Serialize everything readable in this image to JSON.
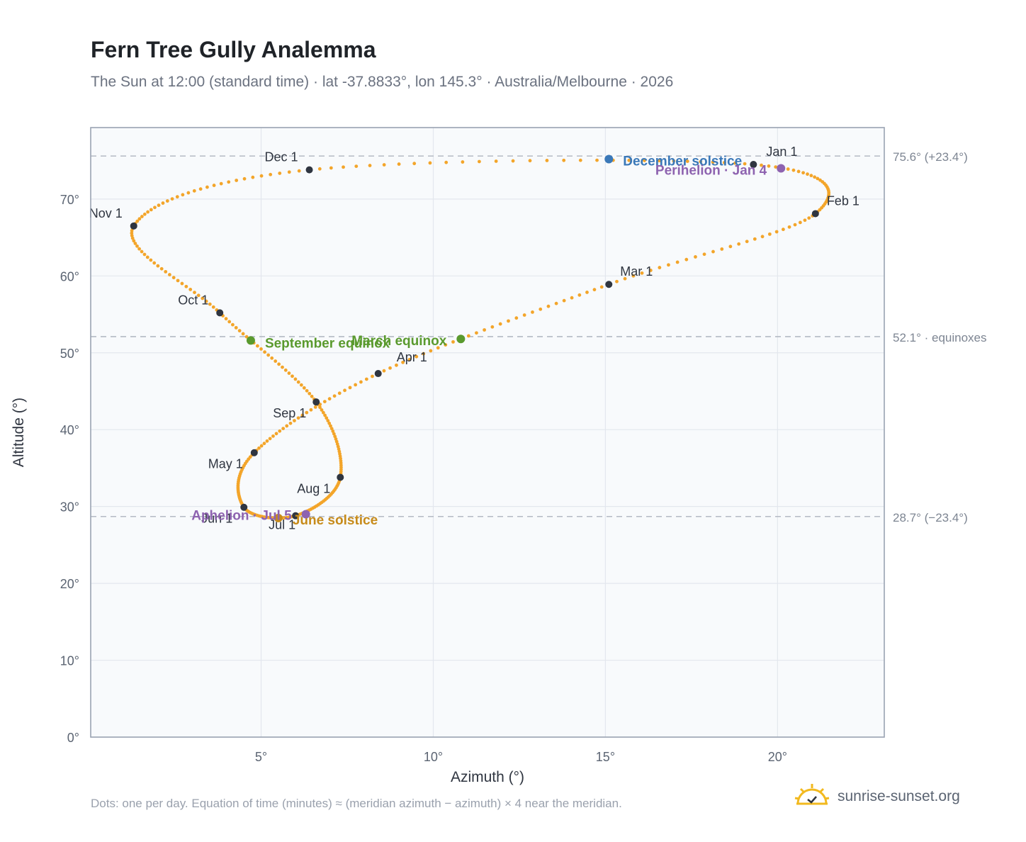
{
  "title": "Fern Tree Gully Analemma",
  "subtitle": "The Sun at 12:00 (standard time) · lat -37.8833°, lon 145.3° · Australia/Melbourne · 2026",
  "footnote": "Dots: one per day. Equation of time (minutes) ≈ (meridian azimuth − azimuth) × 4 near the meridian.",
  "brand": {
    "name": "sunrise-sunset.org",
    "icon": "sun-logo-icon"
  },
  "colors": {
    "curve": "#f3a52a",
    "month_marker": "#2f3540",
    "equinox": "#5a9a2e",
    "december_solstice": "#3a78b8",
    "june_solstice": "#c78b1a",
    "perihelion": "#8e63b0",
    "aphelion": "#8e63b0",
    "reference_line": "#b4bac4",
    "plot_bg": "#f8fafc",
    "grid": "#e3e7ee"
  },
  "chart_data": {
    "type": "scatter",
    "title": "Fern Tree Gully Analemma",
    "xlabel": "Azimuth (°)",
    "ylabel": "Altitude (°)",
    "xlim": [
      0.05,
      23.1
    ],
    "ylim": [
      0,
      79.3
    ],
    "x_ticks": [
      5,
      10,
      15,
      20
    ],
    "x_tick_labels": [
      "5°",
      "10°",
      "15°",
      "20°"
    ],
    "y_ticks": [
      0,
      10,
      20,
      30,
      40,
      50,
      60,
      70
    ],
    "y_tick_labels": [
      "0°",
      "10°",
      "20°",
      "30°",
      "40°",
      "50°",
      "60°",
      "70°"
    ],
    "grid": true,
    "series": [
      {
        "label_key": "curve",
        "note": "one point per day, traced through the monthly anchors",
        "anchors": [
          {
            "label": "Jan 1",
            "x": 19.3,
            "y": 74.5
          },
          {
            "label": "Feb 1",
            "x": 21.1,
            "y": 68.1
          },
          {
            "label": "Mar 1",
            "x": 15.1,
            "y": 58.9
          },
          {
            "label": "Apr 1",
            "x": 8.4,
            "y": 47.3
          },
          {
            "label": "May 1",
            "x": 4.8,
            "y": 37.0
          },
          {
            "label": "Jun 1",
            "x": 4.5,
            "y": 29.9
          },
          {
            "label": "Jul 1",
            "x": 6.0,
            "y": 28.8
          },
          {
            "label": "Aug 1",
            "x": 7.3,
            "y": 33.8
          },
          {
            "label": "Sep 1",
            "x": 6.6,
            "y": 43.6
          },
          {
            "label": "Oct 1",
            "x": 3.8,
            "y": 55.2
          },
          {
            "label": "Nov 1",
            "x": 1.3,
            "y": 66.5
          },
          {
            "label": "Dec 1",
            "x": 6.4,
            "y": 73.8
          }
        ]
      }
    ],
    "events": [
      {
        "label": "March equinox",
        "x": 10.8,
        "y": 51.8,
        "color_key": "equinox"
      },
      {
        "label": "September equinox",
        "x": 4.7,
        "y": 51.6,
        "color_key": "equinox"
      },
      {
        "label": "December solstice",
        "x": 15.1,
        "y": 75.2,
        "color_key": "december_solstice"
      },
      {
        "label": "June solstice",
        "x": 5.5,
        "y": 28.5,
        "color_key": "june_solstice"
      },
      {
        "label": "Perihelion · Jan 4",
        "x": 20.1,
        "y": 74.0,
        "color_key": "perihelion"
      },
      {
        "label": "Aphelion · Jul 5",
        "x": 6.3,
        "y": 29.0,
        "color_key": "aphelion"
      }
    ],
    "reference_lines": [
      {
        "y": 75.6,
        "label": "75.6° (+23.4°)"
      },
      {
        "y": 52.1,
        "label": "52.1° · equinoxes"
      },
      {
        "y": 28.7,
        "label": "28.7° (−23.4°)"
      }
    ]
  }
}
